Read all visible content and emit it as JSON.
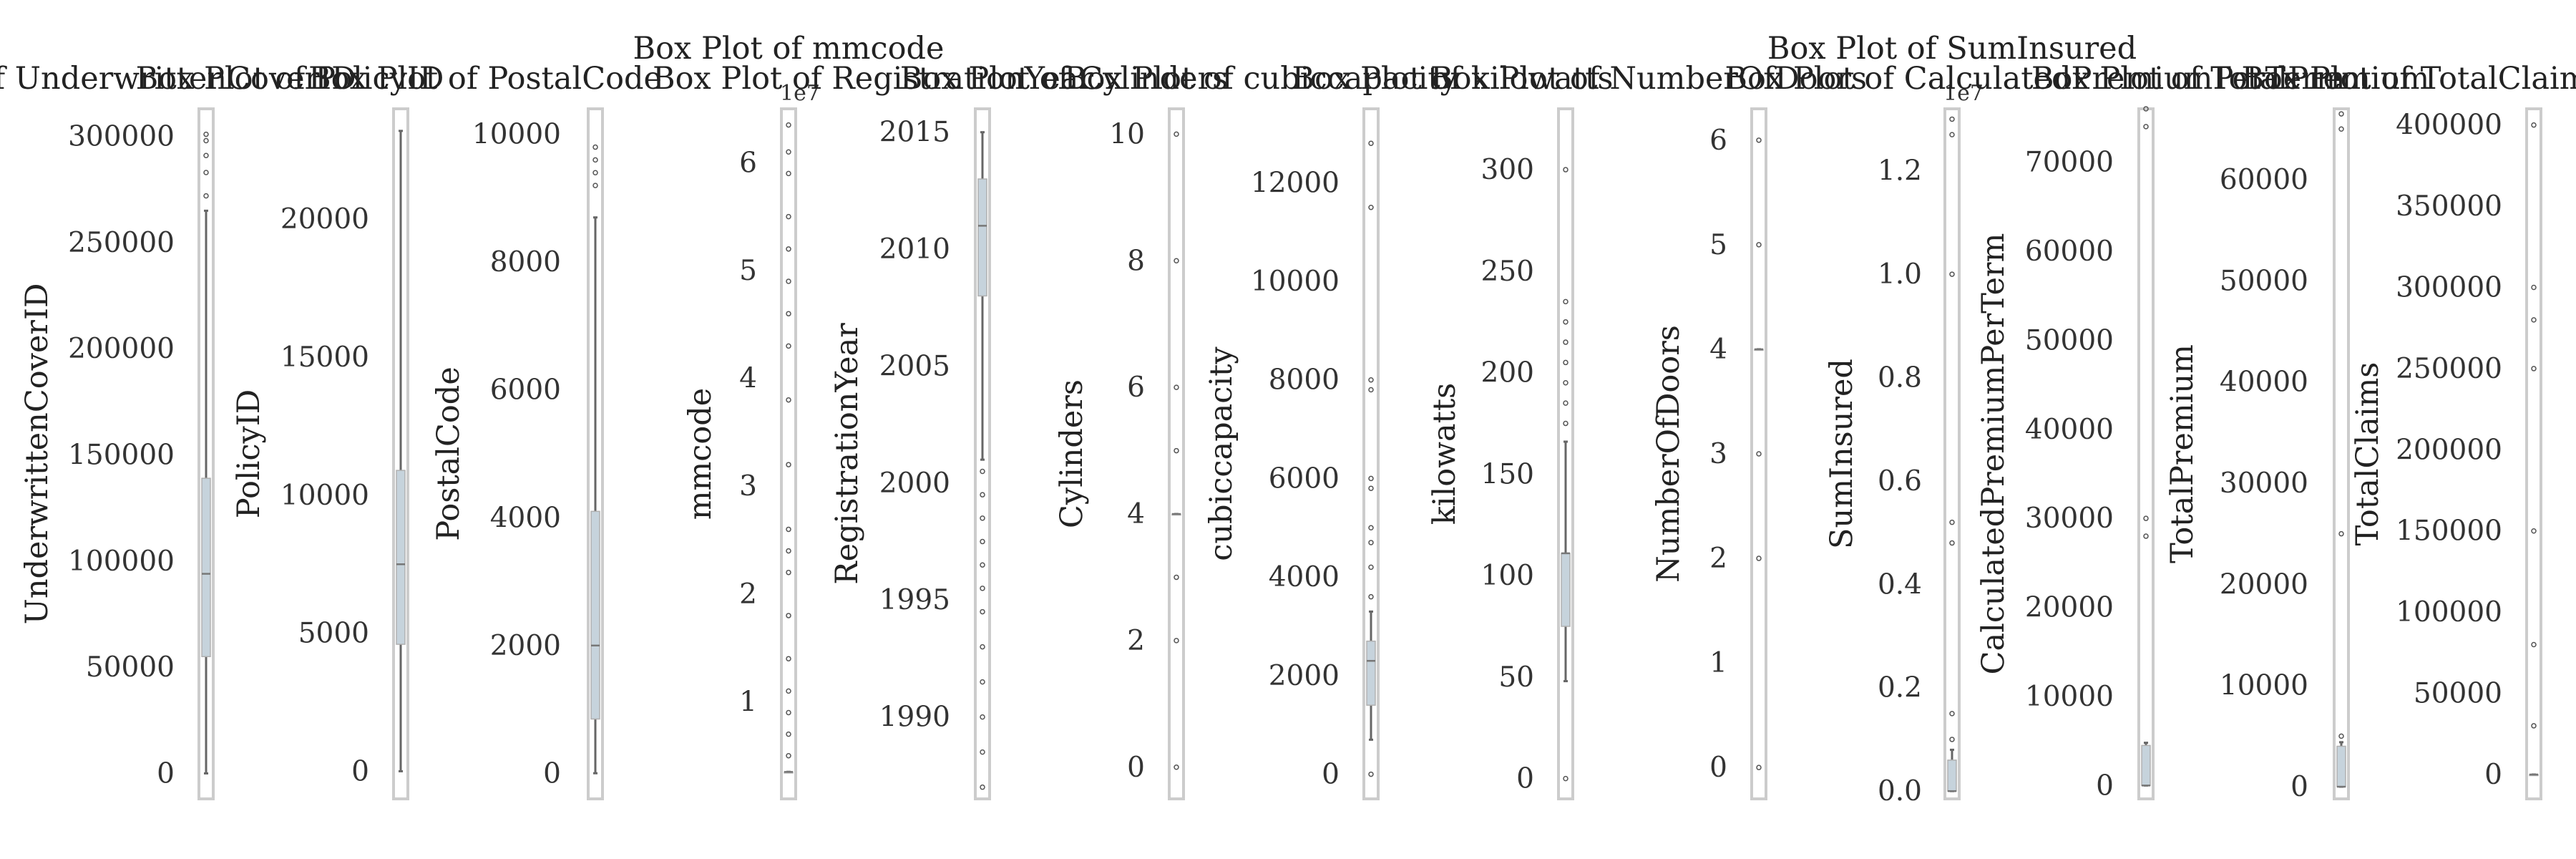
{
  "figure": {
    "background": "#ffffff"
  },
  "style": {
    "box_fill": "#c6d3dc",
    "box_edge": "#b0b0b0",
    "whisker_color": "#666666",
    "median_color": "#777777",
    "flier_color": "#555555",
    "text_color": "#222222"
  },
  "chart_data": [
    {
      "type": "box",
      "title": "Box Plot of UnderwrittenCoverID",
      "ylabel": "UnderwrittenCoverID",
      "offset_text": "",
      "ylim": [
        -12000,
        313000
      ],
      "ticks": [
        0,
        50000,
        100000,
        150000,
        200000,
        250000,
        300000
      ],
      "tick_labels": [
        "0",
        "50000",
        "100000",
        "150000",
        "200000",
        "250000",
        "300000"
      ],
      "whislo": 1,
      "q1": 55000,
      "med": 94000,
      "q3": 139000,
      "whishi": 265000,
      "fliers": [
        272000,
        283000,
        291000,
        298000,
        301000
      ]
    },
    {
      "type": "box",
      "title": "Box Plot of PolicyID",
      "ylabel": "PolicyID",
      "offset_text": "",
      "ylim": [
        -1000,
        24000
      ],
      "ticks": [
        0,
        5000,
        10000,
        15000,
        20000
      ],
      "tick_labels": [
        "0",
        "5000",
        "10000",
        "15000",
        "20000"
      ],
      "whislo": 1,
      "q1": 4600,
      "med": 7500,
      "q3": 10900,
      "whishi": 23200,
      "fliers": []
    },
    {
      "type": "box",
      "title": "Box Plot of PostalCode",
      "ylabel": "PostalCode",
      "offset_text": "",
      "ylim": [
        -400,
        10400
      ],
      "ticks": [
        0,
        2000,
        4000,
        6000,
        8000,
        10000
      ],
      "tick_labels": [
        "0",
        "2000",
        "4000",
        "6000",
        "8000",
        "10000"
      ],
      "whislo": 1,
      "q1": 850,
      "med": 2000,
      "q3": 4100,
      "whishi": 8700,
      "fliers": [
        9200,
        9400,
        9600,
        9800
      ]
    },
    {
      "type": "box",
      "title": "Box Plot of mmcode",
      "ylabel": "mmcode",
      "offset_text": "1e7",
      "ylim": [
        0.1,
        6.5
      ],
      "ticks": [
        1,
        2,
        3,
        4,
        5,
        6
      ],
      "tick_labels": [
        "1",
        "2",
        "3",
        "4",
        "5",
        "6"
      ],
      "whislo": 0.35,
      "q1": 0.35,
      "med": 0.35,
      "q3": 0.35,
      "whishi": 0.35,
      "fliers": [
        0.5,
        0.7,
        0.9,
        1.1,
        1.4,
        1.8,
        2.2,
        2.4,
        2.6,
        3.2,
        3.8,
        4.3,
        4.6,
        4.9,
        5.2,
        5.5,
        5.9,
        6.1,
        6.35
      ]
    },
    {
      "type": "box",
      "title": "Box Plot of RegistrationYear",
      "ylabel": "RegistrationYear",
      "offset_text": "",
      "ylim": [
        1986.5,
        2016
      ],
      "ticks": [
        1990,
        1995,
        2000,
        2005,
        2010,
        2015
      ],
      "tick_labels": [
        "1990",
        "1995",
        "2000",
        "2005",
        "2010",
        "2015"
      ],
      "whislo": 2001,
      "q1": 2008,
      "med": 2011,
      "q3": 2013,
      "whishi": 2015,
      "fliers": [
        1987,
        1988.5,
        1990,
        1991.5,
        1993,
        1994.5,
        1995.5,
        1996.5,
        1997.5,
        1998.5,
        1999.5,
        2000.5
      ]
    },
    {
      "type": "box",
      "title": "Box Plot of Cylinders",
      "ylabel": "Cylinders",
      "offset_text": "",
      "ylim": [
        -0.5,
        10.4
      ],
      "ticks": [
        0,
        2,
        4,
        6,
        8,
        10
      ],
      "tick_labels": [
        "0",
        "2",
        "4",
        "6",
        "8",
        "10"
      ],
      "whislo": 4,
      "q1": 4,
      "med": 4,
      "q3": 4,
      "whishi": 4,
      "fliers": [
        0,
        2,
        3,
        5,
        6,
        8,
        10
      ]
    },
    {
      "type": "box",
      "title": "Box Plot of cubiccapacity",
      "ylabel": "cubiccapacity",
      "offset_text": "",
      "ylim": [
        -500,
        13500
      ],
      "ticks": [
        0,
        2000,
        4000,
        6000,
        8000,
        10000,
        12000
      ],
      "tick_labels": [
        "0",
        "2000",
        "4000",
        "6000",
        "8000",
        "10000",
        "12000"
      ],
      "whislo": 700,
      "q1": 1400,
      "med": 2300,
      "q3": 2700,
      "whishi": 3300,
      "fliers": [
        0,
        3600,
        4200,
        4700,
        5000,
        5800,
        6000,
        7800,
        8000,
        11500,
        12800
      ]
    },
    {
      "type": "box",
      "title": "Box Plot of kilowatts",
      "ylabel": "kilowatts",
      "offset_text": "",
      "ylim": [
        -10,
        330
      ],
      "ticks": [
        0,
        50,
        100,
        150,
        200,
        250,
        300
      ],
      "tick_labels": [
        "0",
        "50",
        "100",
        "150",
        "200",
        "250",
        "300"
      ],
      "whislo": 48,
      "q1": 75,
      "med": 111,
      "q3": 111,
      "whishi": 166,
      "fliers": [
        0,
        175,
        185,
        195,
        205,
        215,
        225,
        235,
        300
      ]
    },
    {
      "type": "box",
      "title": "Box Plot of NumberOfDoors",
      "ylabel": "NumberOfDoors",
      "offset_text": "",
      "ylim": [
        -0.3,
        6.3
      ],
      "ticks": [
        0,
        1,
        2,
        3,
        4,
        5,
        6
      ],
      "tick_labels": [
        "0",
        "1",
        "2",
        "3",
        "4",
        "5",
        "6"
      ],
      "whislo": 4,
      "q1": 4,
      "med": 4,
      "q3": 4,
      "whishi": 4,
      "fliers": [
        0,
        2,
        3,
        5,
        6
      ]
    },
    {
      "type": "box",
      "title": "Box Plot of SumInsured",
      "ylabel": "SumInsured",
      "offset_text": "1e7",
      "ylim": [
        -0.015,
        1.32
      ],
      "ticks": [
        0.0,
        0.2,
        0.4,
        0.6,
        0.8,
        1.0,
        1.2
      ],
      "tick_labels": [
        "0.0",
        "0.2",
        "0.4",
        "0.6",
        "0.8",
        "1.0",
        "1.2"
      ],
      "whislo": 0.0,
      "q1": 0.0,
      "med": 0.0,
      "q3": 0.06,
      "whishi": 0.08,
      "fliers": [
        0.1,
        0.15,
        0.48,
        0.52,
        1.0,
        1.27,
        1.3
      ]
    },
    {
      "type": "box",
      "title": "Box Plot of CalculatedPremiumPerTerm",
      "ylabel": "CalculatedPremiumPerTerm",
      "offset_text": "",
      "ylim": [
        -1500,
        76000
      ],
      "ticks": [
        0,
        10000,
        20000,
        30000,
        40000,
        50000,
        60000,
        70000
      ],
      "tick_labels": [
        "0",
        "10000",
        "20000",
        "30000",
        "40000",
        "50000",
        "60000",
        "70000"
      ],
      "whislo": 0,
      "q1": 0,
      "med": 0,
      "q3": 4500,
      "whishi": 4800,
      "fliers": [
        28000,
        30000,
        74000,
        76000
      ]
    },
    {
      "type": "box",
      "title": "Box Plot of TotalPremium",
      "ylabel": "TotalPremium",
      "offset_text": "",
      "ylim": [
        -1200,
        67000
      ],
      "ticks": [
        0,
        10000,
        20000,
        30000,
        40000,
        50000,
        60000
      ],
      "tick_labels": [
        "0",
        "10000",
        "20000",
        "30000",
        "40000",
        "50000",
        "60000"
      ],
      "whislo": 0,
      "q1": 0,
      "med": 0,
      "q3": 4000,
      "whishi": 4400,
      "fliers": [
        5000,
        25000,
        65000,
        66500
      ]
    },
    {
      "type": "box",
      "title": "Box Plot of TotalClaims",
      "ylabel": "TotalClaims",
      "offset_text": "",
      "ylim": [
        -15000,
        410000
      ],
      "ticks": [
        0,
        50000,
        100000,
        150000,
        200000,
        250000,
        300000,
        350000,
        400000
      ],
      "tick_labels": [
        "0",
        "50000",
        "100000",
        "150000",
        "200000",
        "250000",
        "300000",
        "350000",
        "400000"
      ],
      "whislo": 0,
      "q1": 0,
      "med": 0,
      "q3": 0,
      "whishi": 0,
      "fliers": [
        30000,
        80000,
        150000,
        250000,
        280000,
        300000,
        400000
      ]
    }
  ]
}
